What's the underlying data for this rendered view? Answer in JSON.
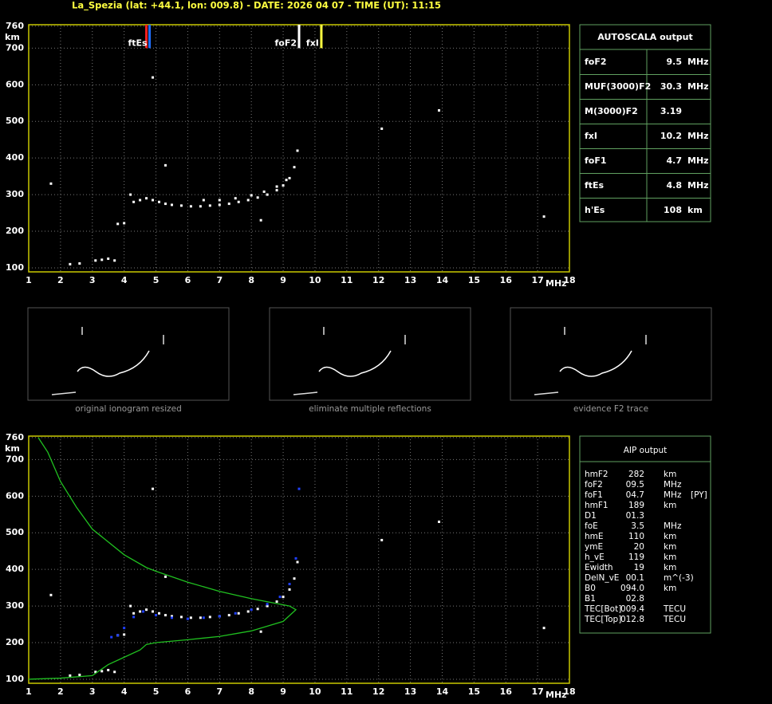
{
  "header": {
    "title": "La_Spezia (lat: +44.1, lon: 009.8) - DATE: 2026 04 07 - TIME (UT): 11:15"
  },
  "chart_data": [
    {
      "type": "scatter",
      "xlabel": "MHz",
      "ylabel": "km",
      "xlim": [
        1,
        18
      ],
      "ylim": [
        89,
        764
      ],
      "xticks": [
        1,
        2,
        3,
        4,
        5,
        6,
        7,
        8,
        9,
        10,
        11,
        12,
        13,
        14,
        15,
        16,
        17,
        18
      ],
      "yticks": [
        100,
        200,
        300,
        400,
        500,
        600,
        700,
        760
      ],
      "grid": true,
      "frame_color": "#c8c800",
      "series": [
        {
          "color": "#ffffff",
          "mode": "dots",
          "x": [
            4.3,
            4.5,
            4.7,
            4.9,
            5.1,
            5.3,
            5.5,
            5.8,
            6.1,
            6.4,
            6.7,
            7.0,
            7.3,
            7.6,
            7.9,
            8.2,
            8.5,
            8.8,
            9.0,
            9.2,
            9.35,
            9.45
          ],
          "values": [
            280,
            285,
            290,
            285,
            280,
            275,
            272,
            270,
            268,
            268,
            270,
            272,
            275,
            280,
            285,
            292,
            300,
            312,
            325,
            345,
            375,
            420
          ]
        },
        {
          "color": "#ffffff",
          "mode": "dots",
          "x": [
            6.5,
            7.0,
            7.5,
            8.0,
            8.4,
            8.8,
            9.1
          ],
          "values": [
            285,
            285,
            290,
            298,
            308,
            322,
            340
          ]
        },
        {
          "color": "#ffffff",
          "mode": "dots",
          "x": [
            2.3,
            2.6,
            3.1,
            3.3,
            3.5,
            3.7,
            3.8,
            4.0,
            4.2,
            1.7,
            4.9,
            5.3,
            8.3,
            12.1,
            13.9,
            17.2
          ],
          "values": [
            110,
            112,
            120,
            122,
            125,
            120,
            220,
            222,
            300,
            330,
            620,
            380,
            230,
            480,
            530,
            240
          ]
        }
      ],
      "markers": [
        {
          "x": 4.7,
          "color": "#ff2020"
        },
        {
          "x": 4.8,
          "color": "#2070ff",
          "label": "ftEs"
        },
        {
          "x": 9.5,
          "color": "#ffffff",
          "label": "foF2"
        },
        {
          "x": 10.2,
          "color": "#ffff40",
          "label": "fxI"
        }
      ]
    },
    {
      "type": "scatter",
      "xlabel": "MHz",
      "ylabel": "km",
      "xlim": [
        1,
        18
      ],
      "ylim": [
        89,
        764
      ],
      "xticks": [
        1,
        2,
        3,
        4,
        5,
        6,
        7,
        8,
        9,
        10,
        11,
        12,
        13,
        14,
        15,
        16,
        17,
        18
      ],
      "yticks": [
        100,
        200,
        300,
        400,
        500,
        600,
        700,
        760
      ],
      "grid": true,
      "frame_color": "#c8c800",
      "series": [
        {
          "color": "#ffffff",
          "mode": "dots",
          "x": [
            4.3,
            4.5,
            4.7,
            4.9,
            5.1,
            5.3,
            5.5,
            5.8,
            6.1,
            6.4,
            6.7,
            7.0,
            7.3,
            7.6,
            7.9,
            8.2,
            8.5,
            8.8,
            9.0,
            9.2,
            9.35,
            9.45
          ],
          "values": [
            280,
            285,
            290,
            285,
            280,
            275,
            272,
            270,
            268,
            268,
            270,
            272,
            275,
            280,
            285,
            292,
            300,
            312,
            325,
            345,
            375,
            420
          ]
        },
        {
          "color": "#ffffff",
          "mode": "dots",
          "x": [
            2.3,
            2.6,
            3.1,
            3.3,
            3.5,
            3.7,
            3.8,
            4.0,
            4.2,
            1.7,
            4.9,
            5.3,
            8.3,
            12.1,
            13.9,
            17.2
          ],
          "values": [
            110,
            112,
            120,
            122,
            125,
            120,
            220,
            222,
            300,
            330,
            620,
            380,
            230,
            480,
            530,
            240
          ]
        },
        {
          "color": "#20c020",
          "mode": "line",
          "x": [
            1,
            2,
            3,
            3.5,
            4,
            4.5,
            4.7,
            5,
            6,
            7,
            8,
            9,
            9.4,
            9.2,
            8,
            7,
            6,
            5,
            4.7,
            4,
            3,
            2.5,
            2,
            1.6,
            1.3
          ],
          "values": [
            100,
            103,
            110,
            140,
            160,
            180,
            195,
            200,
            208,
            217,
            232,
            258,
            290,
            300,
            320,
            340,
            365,
            395,
            405,
            440,
            510,
            570,
            640,
            720,
            760
          ]
        },
        {
          "color": "#2040ff",
          "mode": "dots",
          "x": [
            3.6,
            3.8,
            4.0,
            4.3,
            4.6,
            5.0,
            5.5,
            6.0,
            6.5,
            7.0,
            7.5,
            8.0,
            8.5,
            8.9,
            9.2,
            9.4,
            9.5
          ],
          "values": [
            215,
            220,
            240,
            270,
            285,
            275,
            268,
            265,
            268,
            272,
            280,
            290,
            305,
            325,
            360,
            430,
            620
          ]
        }
      ]
    }
  ],
  "thumbnails": [
    {
      "caption": "original ionogram resized"
    },
    {
      "caption": "eliminate multiple reflections"
    },
    {
      "caption": "evidence F2 trace"
    }
  ],
  "autoscala": {
    "title": "AUTOSCALA output",
    "rows": [
      {
        "name": "foF2",
        "value": 9.5,
        "unit": "MHz",
        "color": "#ffffff"
      },
      {
        "name": "MUF(3000)F2",
        "value": 30.3,
        "unit": "MHz",
        "color": "#ffffff"
      },
      {
        "name": "M(3000)F2",
        "value": 3.19,
        "color": "#ffffff"
      },
      {
        "name": "fxI",
        "value": 10.2,
        "unit": "MHz",
        "color": "#ffff40"
      },
      {
        "name": "foF1",
        "value": 4.7,
        "unit": "MHz",
        "color": "#ff2020"
      },
      {
        "name": "ftEs",
        "value": 4.8,
        "unit": "MHz",
        "color": "#3080ff"
      },
      {
        "name": "h'Es",
        "value": 108,
        "unit": "km",
        "color": "#ffffff"
      }
    ]
  },
  "aip": {
    "title": "AIP output",
    "rows": [
      [
        "hmF2",
        "282",
        "km"
      ],
      [
        "foF2",
        "09.5",
        "MHz"
      ],
      [
        "foF1",
        "04.7",
        "MHz",
        "[PY]"
      ],
      [
        "hmF1",
        "189",
        "km"
      ],
      [
        "D1",
        "01.3"
      ],
      [
        "foE",
        "3.5",
        "MHz"
      ],
      [
        "hmE",
        "110",
        "km"
      ],
      [
        "ymE",
        "20",
        "km"
      ],
      [
        "h_vE",
        "119",
        "km"
      ],
      [
        "Ewidth",
        "19",
        "km"
      ],
      [
        "DelN_vE",
        "00.1",
        "m^(-3)"
      ],
      [
        "B0",
        "094.0",
        "km"
      ],
      [
        "B1",
        "02.8"
      ],
      [
        "TEC[Bot]",
        "009.4",
        "TECU"
      ],
      [
        "TEC[Top]",
        "012.8",
        "TECU"
      ]
    ]
  }
}
